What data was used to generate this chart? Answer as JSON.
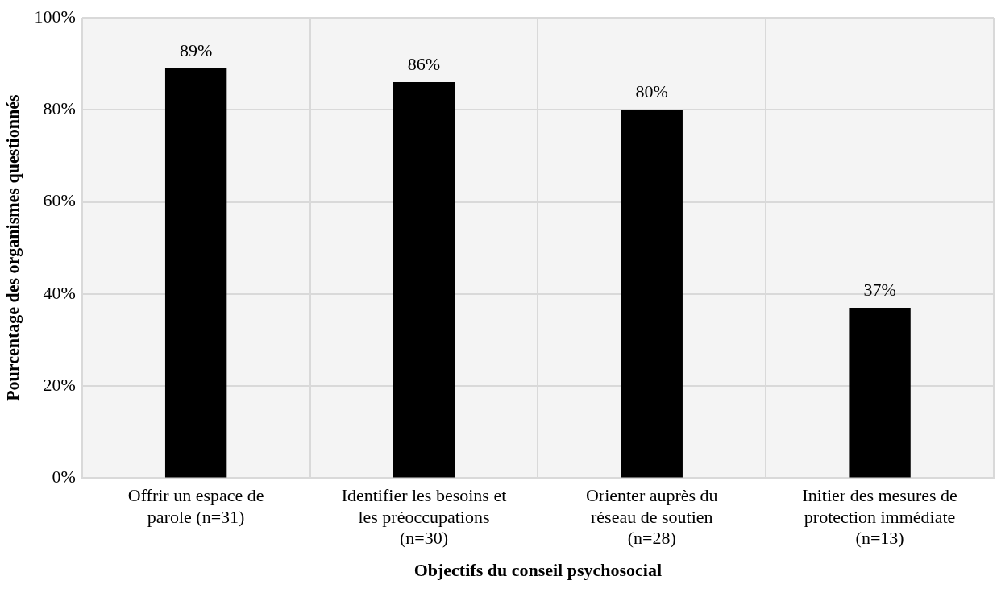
{
  "chart_data": {
    "type": "bar",
    "xlabel": "Objectifs du conseil psychosocial",
    "ylabel": "Pourcentage des organismes questionnés",
    "categories": [
      "Offrir un espace de\nparole (n=31)",
      "Identifier les besoins et\nles préoccupations\n(n=30)",
      "Orienter auprès du\nréseau de soutien\n(n=28)",
      "Initier des mesures de\nprotection immédiate\n(n=13)"
    ],
    "values": [
      89,
      86,
      80,
      37
    ],
    "color": "#000000",
    "value_labels": [
      "89%",
      "86%",
      "80%",
      "37%"
    ],
    "ylim": [
      0,
      100
    ],
    "yticks": [
      {
        "value": 0,
        "label": "0%"
      },
      {
        "value": 20,
        "label": "20%"
      },
      {
        "value": 40,
        "label": "40%"
      },
      {
        "value": 60,
        "label": "60%"
      },
      {
        "value": 80,
        "label": "80%"
      },
      {
        "value": 100,
        "label": "100%"
      }
    ],
    "grid": true,
    "legend": false
  }
}
